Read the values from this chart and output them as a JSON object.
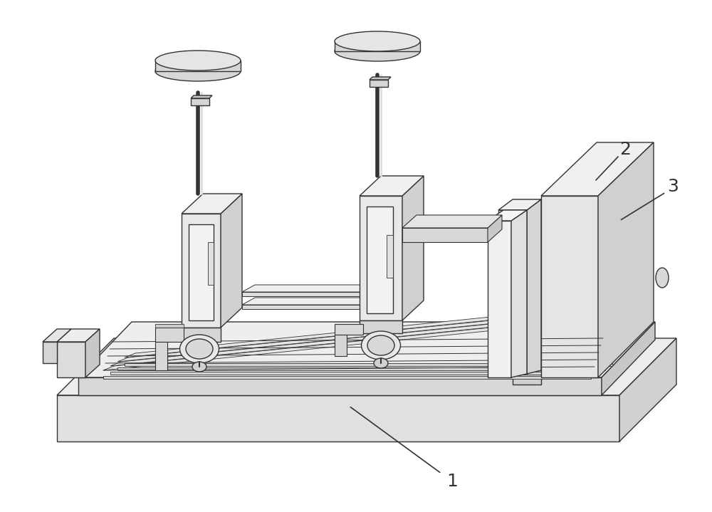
{
  "background_color": "#ffffff",
  "line_color": "#333333",
  "label_color": "#1a1a1a",
  "face_light": "#f5f5f5",
  "face_mid": "#e8e8e8",
  "face_dark": "#d5d5d5",
  "face_darker": "#c5c5c5",
  "fig_width": 10.0,
  "fig_height": 7.19,
  "lw": 1.0
}
